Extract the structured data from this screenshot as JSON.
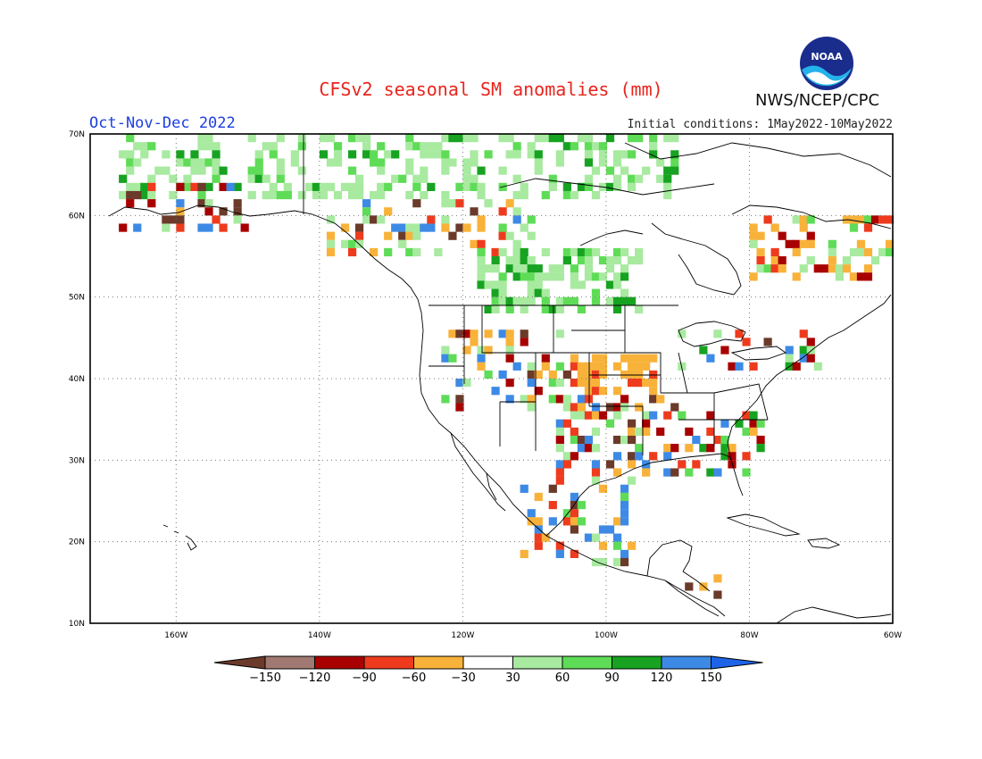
{
  "header": {
    "title": "CFSv2 seasonal SM anomalies (mm)",
    "season": "Oct-Nov-Dec 2022",
    "initial_conditions": "Initial conditions: 1May2022-10May2022",
    "agency": "NWS/NCEP/CPC",
    "logo_text": "NOAA"
  },
  "map": {
    "lon_range": [
      -172,
      -60
    ],
    "lat_range": [
      10,
      70
    ],
    "lon_ticks": [
      "160W",
      "140W",
      "120W",
      "100W",
      "80W",
      "60W"
    ],
    "lat_ticks": [
      "10N",
      "20N",
      "30N",
      "40N",
      "50N",
      "60N",
      "70N"
    ],
    "grid": true
  },
  "legend": {
    "labels": [
      "-150",
      "-120",
      "-90",
      "-60",
      "-30",
      "30",
      "60",
      "90",
      "120",
      "150"
    ],
    "colors": [
      "#6b3a2a",
      "#a07a72",
      "#a80000",
      "#ee3b1d",
      "#f8b23a",
      "#ffffff",
      "#a8eaa0",
      "#5fdc57",
      "#17a321",
      "#3d8ae6",
      "#1e64e8"
    ]
  }
}
